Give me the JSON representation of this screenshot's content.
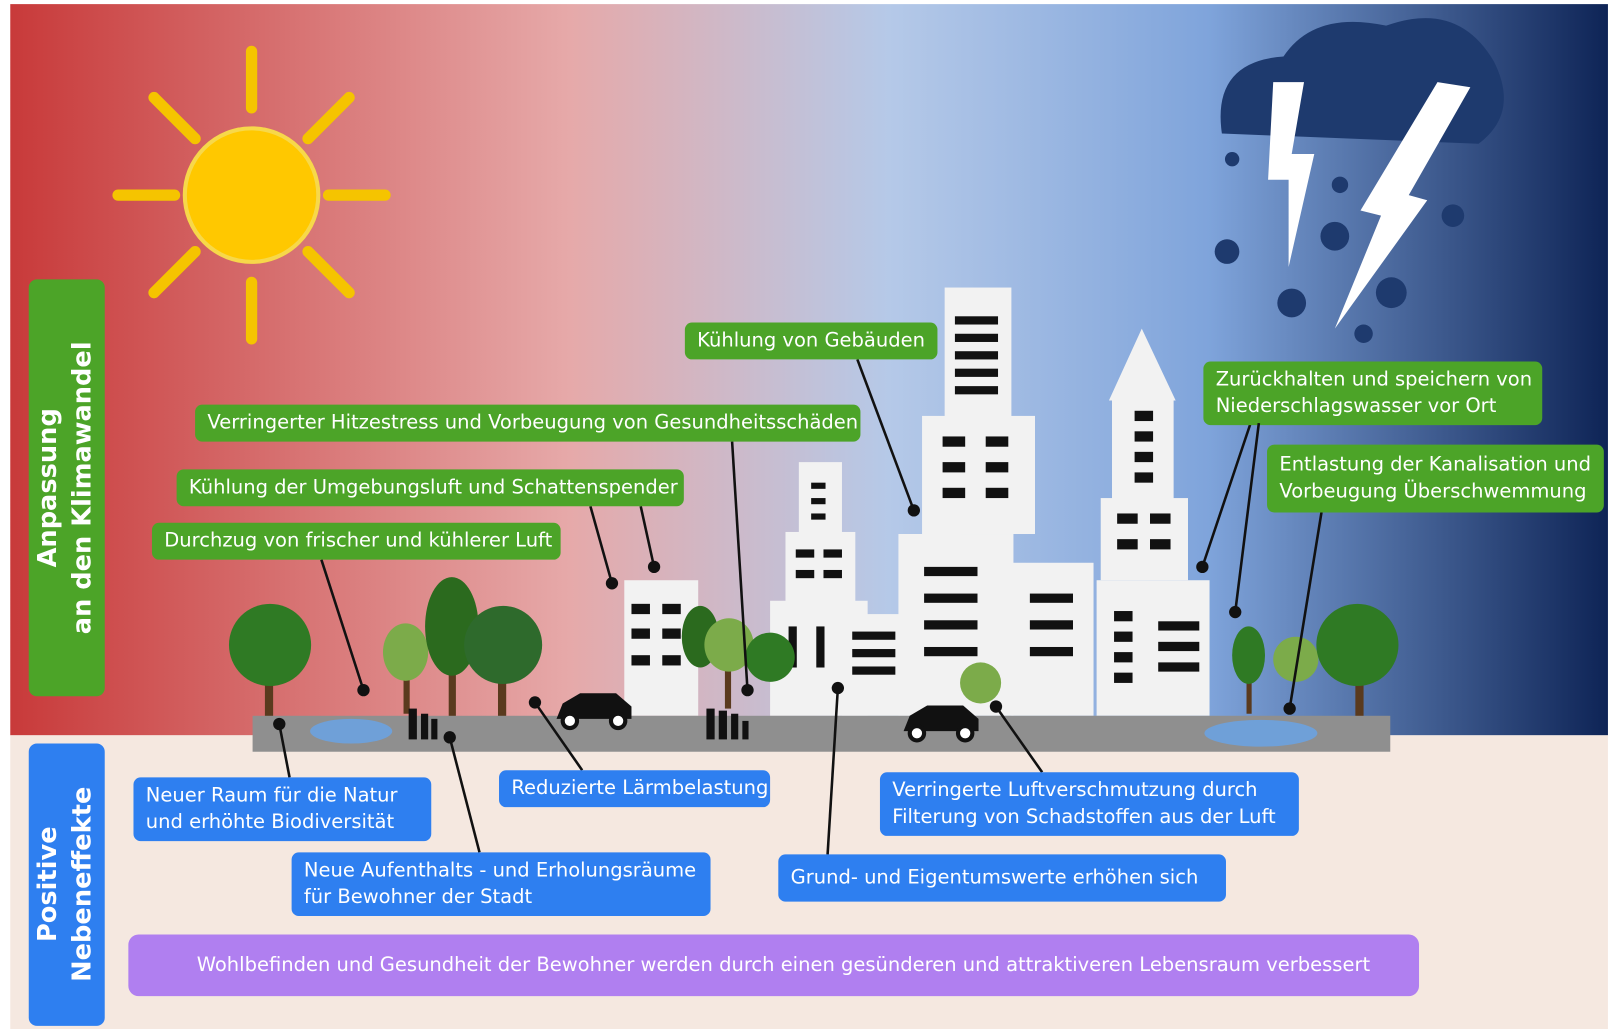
{
  "side_labels": {
    "adaptation": [
      "Anpassung",
      "an den Klimawandel"
    ],
    "side_effects": [
      "Positive",
      "Nebeneffekte"
    ]
  },
  "adaptation_labels": [
    [
      "Kühlung von Gebäuden"
    ],
    [
      "Verringerter Hitzestress und Vorbeugung von Gesundheitsschäden"
    ],
    [
      "Kühlung der Umgebungsluft und Schattenspender"
    ],
    [
      "Durchzug von frischer und kühlerer Luft"
    ],
    [
      "Zurückhalten und speichern von",
      "Niederschlagswasser vor Ort"
    ],
    [
      "Entlastung der Kanalisation und",
      "Vorbeugung Überschwemmung"
    ]
  ],
  "side_effect_labels": [
    [
      "Neuer Raum für die Natur",
      "und erhöhte Biodiversität"
    ],
    [
      "Neue Aufenthalts - und Erholungsräume",
      "für Bewohner der Stadt"
    ],
    [
      "Reduzierte Lärmbelastung"
    ],
    [
      "Verringerte Luftverschmutzung durch",
      "Filterung von Schadstoffen aus der Luft"
    ],
    [
      "Grund- und Eigentumswerte erhöhen sich"
    ]
  ],
  "summary": "Wohlbefinden und Gesundheit der Bewohner werden durch einen gesünderen und attraktiveren Lebensraum verbessert"
}
